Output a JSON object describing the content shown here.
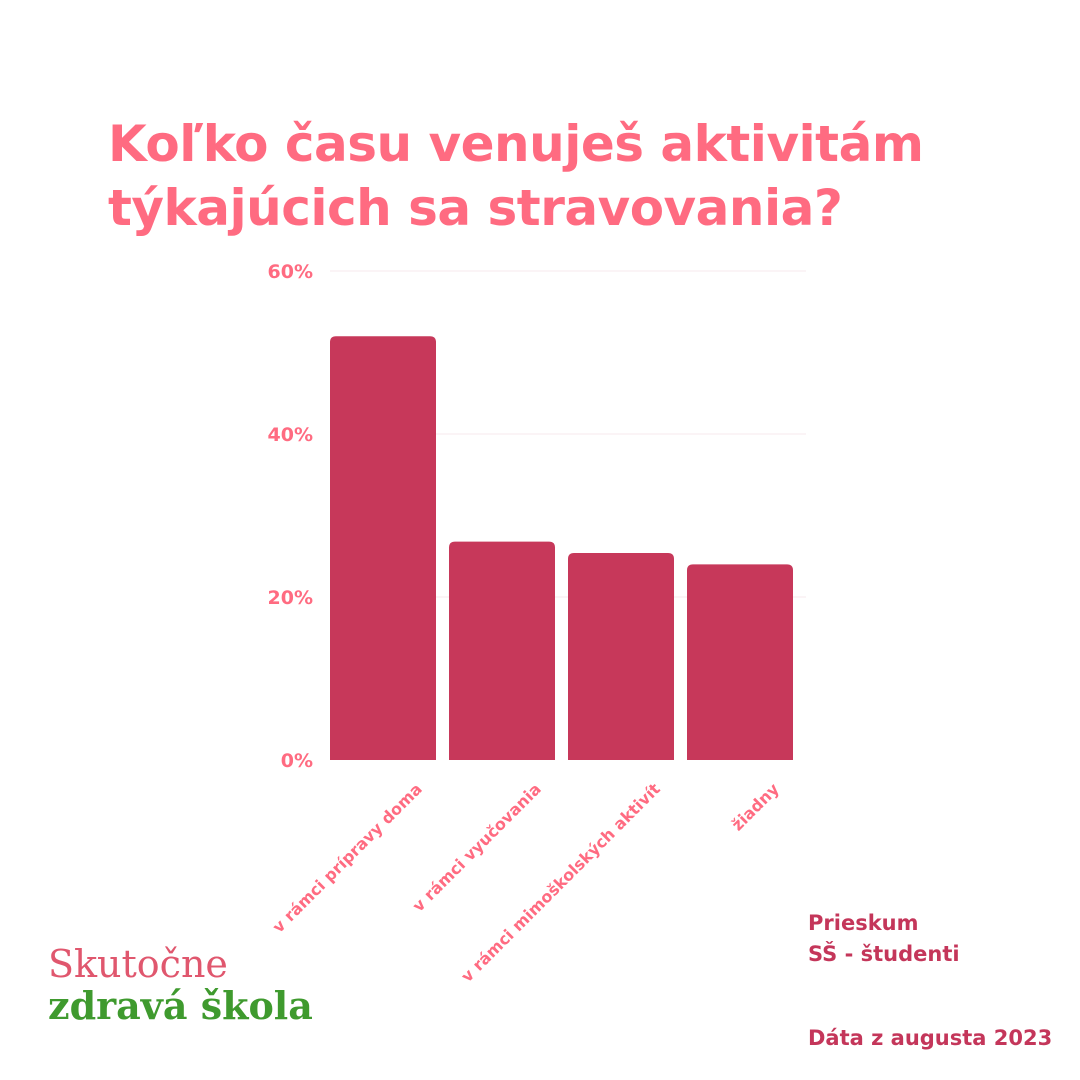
{
  "title": {
    "line1": "Koľko času venuješ aktivitám",
    "line2": "týkajúcich sa stravovania?"
  },
  "chart_data": {
    "type": "bar",
    "title": "Koľko času venuješ aktivitám týkajúcich sa stravovania?",
    "categories": [
      "v rámci prípravy doma",
      "v rámci vyučovania",
      "v rámci mimoškolských aktivít",
      "žiadny"
    ],
    "values": [
      52,
      26.8,
      25.4,
      24
    ],
    "ylim": [
      0,
      60
    ],
    "yticks": [
      0,
      20,
      40,
      60
    ],
    "ytick_labels": [
      "0%",
      "20%",
      "40%",
      "60%"
    ],
    "grid": true,
    "bar_color": "#c7385a",
    "tick_color": "#ff6b81"
  },
  "logo": {
    "line1": "Skutočne",
    "line2": "zdravá škola",
    "color1": "#e0576e",
    "color2": "#3f9a2e"
  },
  "source": {
    "line1": "Prieskum",
    "line2": "SŠ - študenti",
    "date": "Dáta z augusta 2023",
    "color": "#c4365a"
  }
}
